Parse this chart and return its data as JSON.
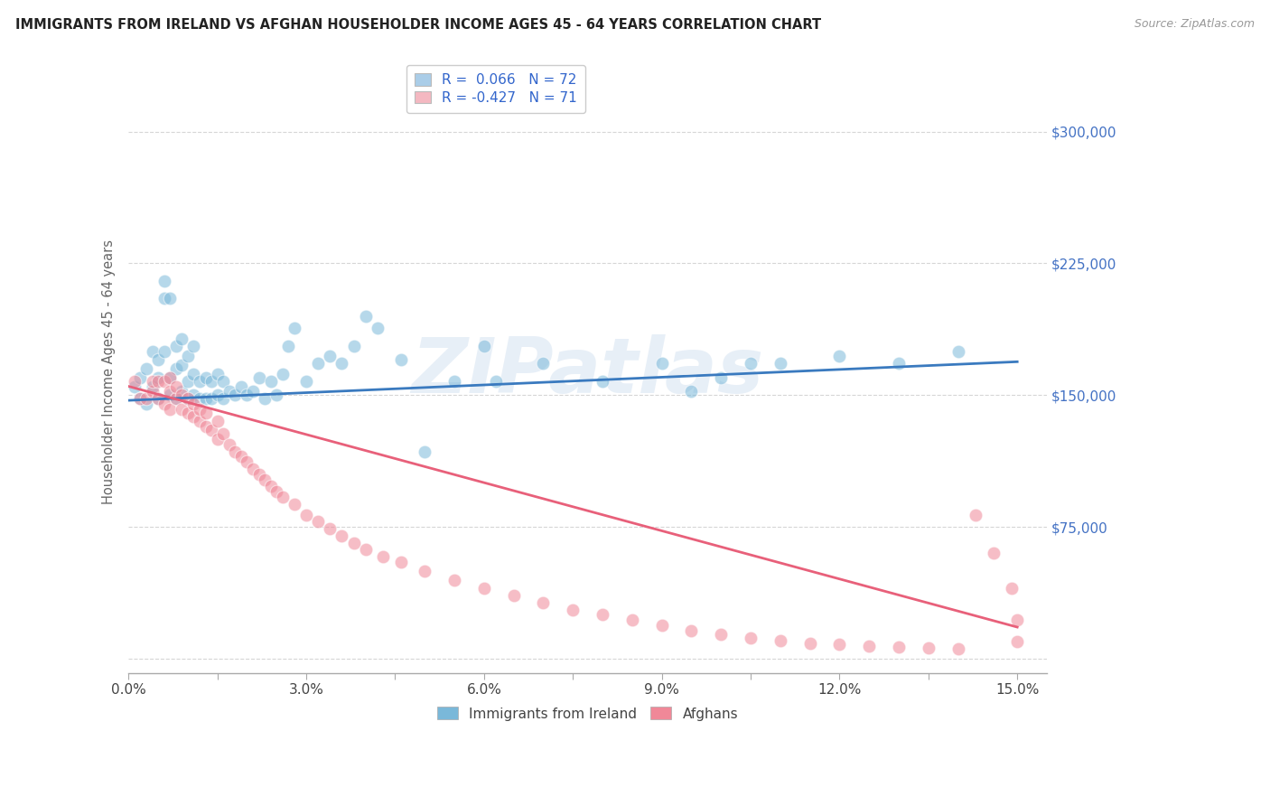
{
  "title": "IMMIGRANTS FROM IRELAND VS AFGHAN HOUSEHOLDER INCOME AGES 45 - 64 YEARS CORRELATION CHART",
  "source": "Source: ZipAtlas.com",
  "ylabel": "Householder Income Ages 45 - 64 years",
  "xlim": [
    0.0,
    0.155
  ],
  "ylim": [
    -8000,
    335000
  ],
  "yticks": [
    0,
    75000,
    150000,
    225000,
    300000
  ],
  "ytick_labels": [
    "",
    "$75,000",
    "$150,000",
    "$225,000",
    "$300,000"
  ],
  "xticks": [
    0.0,
    0.015,
    0.03,
    0.045,
    0.06,
    0.075,
    0.09,
    0.105,
    0.12,
    0.135,
    0.15
  ],
  "xtick_labels": [
    "0.0%",
    "",
    "3.0%",
    "",
    "6.0%",
    "",
    "9.0%",
    "",
    "12.0%",
    "",
    "15.0%"
  ],
  "watermark": "ZIPatlas",
  "legend1_label1": "R =  0.066   N = 72",
  "legend1_label2": "R = -0.427   N = 71",
  "legend1_color1": "#aacde8",
  "legend1_color2": "#f4b8c1",
  "ireland_scatter_color": "#7ab8d9",
  "afghan_scatter_color": "#f08898",
  "ireland_line_color": "#3a7abf",
  "afghan_line_color": "#e8607a",
  "background_color": "#ffffff",
  "grid_color": "#cccccc",
  "title_color": "#222222",
  "axis_label_color": "#666666",
  "ytick_label_color": "#4472c4",
  "xtick_label_color": "#444444",
  "legend2_ireland_label": "Immigrants from Ireland",
  "legend2_afghan_label": "Afghans",
  "ireland_trend_x": [
    0.0,
    0.15
  ],
  "ireland_trend_y": [
    147000,
    169000
  ],
  "afghan_trend_x": [
    0.0,
    0.15
  ],
  "afghan_trend_y": [
    155000,
    18000
  ],
  "ireland_x": [
    0.001,
    0.002,
    0.002,
    0.003,
    0.003,
    0.004,
    0.004,
    0.005,
    0.005,
    0.005,
    0.006,
    0.006,
    0.006,
    0.007,
    0.007,
    0.007,
    0.008,
    0.008,
    0.008,
    0.009,
    0.009,
    0.009,
    0.01,
    0.01,
    0.01,
    0.011,
    0.011,
    0.011,
    0.012,
    0.012,
    0.013,
    0.013,
    0.014,
    0.014,
    0.015,
    0.015,
    0.016,
    0.016,
    0.017,
    0.018,
    0.019,
    0.02,
    0.021,
    0.022,
    0.023,
    0.024,
    0.025,
    0.026,
    0.027,
    0.028,
    0.03,
    0.032,
    0.034,
    0.036,
    0.038,
    0.04,
    0.042,
    0.046,
    0.05,
    0.055,
    0.06,
    0.062,
    0.07,
    0.08,
    0.09,
    0.095,
    0.1,
    0.105,
    0.11,
    0.12,
    0.13,
    0.14
  ],
  "ireland_y": [
    155000,
    160000,
    148000,
    145000,
    165000,
    155000,
    175000,
    148000,
    160000,
    170000,
    205000,
    175000,
    215000,
    150000,
    160000,
    205000,
    148000,
    165000,
    178000,
    152000,
    167000,
    182000,
    148000,
    158000,
    172000,
    150000,
    162000,
    178000,
    148000,
    158000,
    148000,
    160000,
    148000,
    158000,
    150000,
    162000,
    148000,
    158000,
    152000,
    150000,
    155000,
    150000,
    152000,
    160000,
    148000,
    158000,
    150000,
    162000,
    178000,
    188000,
    158000,
    168000,
    172000,
    168000,
    178000,
    195000,
    188000,
    170000,
    118000,
    158000,
    178000,
    158000,
    168000,
    158000,
    168000,
    152000,
    160000,
    168000,
    168000,
    172000,
    168000,
    175000
  ],
  "afghan_x": [
    0.001,
    0.002,
    0.003,
    0.004,
    0.004,
    0.005,
    0.005,
    0.006,
    0.006,
    0.007,
    0.007,
    0.007,
    0.008,
    0.008,
    0.009,
    0.009,
    0.01,
    0.01,
    0.011,
    0.011,
    0.012,
    0.012,
    0.013,
    0.013,
    0.014,
    0.015,
    0.015,
    0.016,
    0.017,
    0.018,
    0.019,
    0.02,
    0.021,
    0.022,
    0.023,
    0.024,
    0.025,
    0.026,
    0.028,
    0.03,
    0.032,
    0.034,
    0.036,
    0.038,
    0.04,
    0.043,
    0.046,
    0.05,
    0.055,
    0.06,
    0.065,
    0.07,
    0.075,
    0.08,
    0.085,
    0.09,
    0.095,
    0.1,
    0.105,
    0.11,
    0.115,
    0.12,
    0.125,
    0.13,
    0.135,
    0.14,
    0.143,
    0.146,
    0.149,
    0.15,
    0.15
  ],
  "afghan_y": [
    158000,
    148000,
    148000,
    152000,
    158000,
    148000,
    158000,
    145000,
    158000,
    142000,
    152000,
    160000,
    148000,
    155000,
    142000,
    150000,
    140000,
    148000,
    138000,
    145000,
    135000,
    142000,
    132000,
    140000,
    130000,
    135000,
    125000,
    128000,
    122000,
    118000,
    115000,
    112000,
    108000,
    105000,
    102000,
    98000,
    95000,
    92000,
    88000,
    82000,
    78000,
    74000,
    70000,
    66000,
    62000,
    58000,
    55000,
    50000,
    45000,
    40000,
    36000,
    32000,
    28000,
    25000,
    22000,
    19000,
    16000,
    14000,
    12000,
    10500,
    9000,
    8000,
    7000,
    6500,
    6000,
    5500,
    82000,
    60000,
    40000,
    22000,
    10000
  ]
}
